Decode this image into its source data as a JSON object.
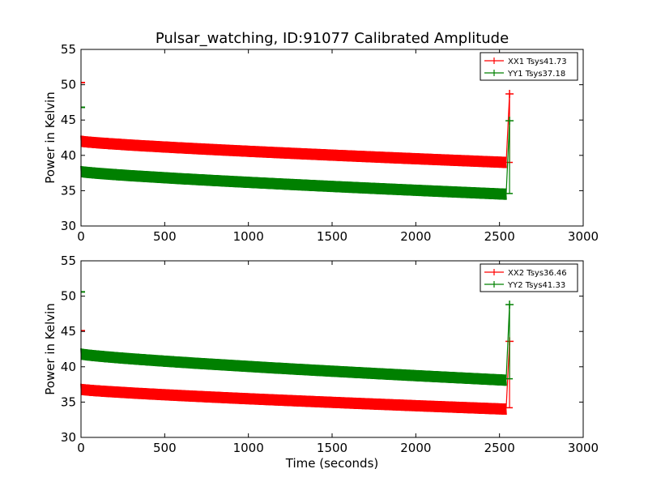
{
  "figure_title": "Pulsar_watching, ID:91077 Calibrated Amplitude",
  "colors": {
    "red": "#ff0000",
    "green": "#008000"
  },
  "chart_data": [
    {
      "type": "line",
      "title": "Pulsar_watching, ID:91077 Calibrated Amplitude",
      "xlabel": "",
      "ylabel": "Power in Kelvin",
      "xlim": [
        0,
        3000
      ],
      "ylim": [
        30,
        55
      ],
      "xticks": [
        "0",
        "500",
        "1000",
        "1500",
        "2000",
        "2500",
        "3000"
      ],
      "yticks": [
        "30",
        "35",
        "40",
        "45",
        "50",
        "55"
      ],
      "legend_position": "top-right",
      "series": [
        {
          "name": "XX1 Tsys41.73",
          "color": "#ff0000",
          "start_value": 50.3,
          "x_start": 0,
          "x_end": 2540,
          "y_start": 42.0,
          "y_end": 39.0,
          "oscillation": 0.8,
          "end_spike_x": 2560,
          "end_spike_y": 48.7,
          "end_value": 39.0
        },
        {
          "name": "YY1 Tsys37.18",
          "color": "#008000",
          "start_value": 46.8,
          "x_start": 0,
          "x_end": 2540,
          "y_start": 37.7,
          "y_end": 34.5,
          "oscillation": 0.8,
          "end_spike_x": 2560,
          "end_spike_y": 44.9,
          "end_value": 34.6
        }
      ]
    },
    {
      "type": "line",
      "title": "",
      "xlabel": "Time (seconds)",
      "ylabel": "Power in Kelvin",
      "xlim": [
        0,
        3000
      ],
      "ylim": [
        30,
        55
      ],
      "xticks": [
        "0",
        "500",
        "1000",
        "1500",
        "2000",
        "2500",
        "3000"
      ],
      "yticks": [
        "30",
        "35",
        "40",
        "45",
        "50",
        "55"
      ],
      "legend_position": "top-right",
      "series": [
        {
          "name": "XX2 Tsys36.46",
          "color": "#ff0000",
          "start_value": 45.1,
          "x_start": 0,
          "x_end": 2540,
          "y_start": 36.8,
          "y_end": 34.0,
          "oscillation": 0.8,
          "end_spike_x": 2560,
          "end_spike_y": 43.6,
          "end_value": 34.2
        },
        {
          "name": "YY2 Tsys41.33",
          "color": "#008000",
          "start_value": 50.6,
          "x_start": 0,
          "x_end": 2540,
          "y_start": 41.8,
          "y_end": 38.1,
          "oscillation": 0.8,
          "end_spike_x": 2560,
          "end_spike_y": 48.8,
          "end_value": 38.3
        }
      ]
    }
  ]
}
